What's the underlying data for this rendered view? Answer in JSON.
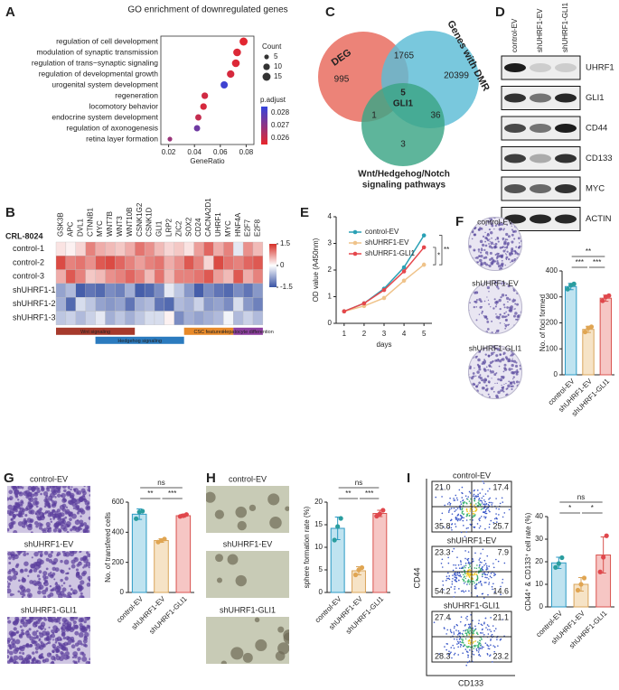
{
  "panel_labels": [
    "A",
    "B",
    "C",
    "D",
    "E",
    "F",
    "G",
    "H",
    "I"
  ],
  "chart_data": [
    {
      "type": "dot",
      "title": "GO enrichment of downregulated genes",
      "categories": [
        "regulation of cell development",
        "modulation of synaptic transmission",
        "regulation of trans−synaptic signaling",
        "regulation of developmental growth",
        "urogenital system development",
        "regeneration",
        "locomotory behavior",
        "endocrine system development",
        "regulation of axonogenesis",
        "retina layer formation"
      ],
      "label_colors": [
        "#d62728",
        "#222222",
        "#222222",
        "#d62728",
        "#222222",
        "#d62728",
        "#222222",
        "#222222",
        "#222222",
        "#222222"
      ],
      "values": [
        0.078,
        0.073,
        0.072,
        0.068,
        0.063,
        0.048,
        0.047,
        0.043,
        0.042,
        0.021
      ],
      "sizes": [
        15,
        14,
        14,
        13,
        12,
        10,
        10,
        9,
        9,
        5
      ],
      "color_values": [
        0.0256,
        0.0257,
        0.0257,
        0.0258,
        0.0283,
        0.0259,
        0.0258,
        0.0261,
        0.0275,
        0.0268
      ],
      "xlim": [
        0.014,
        0.086
      ],
      "xticks": [
        0.02,
        0.04,
        0.06,
        0.08
      ],
      "xlabel": "GeneRatio",
      "size_legend": {
        "title": "Count",
        "values": [
          5,
          10,
          15
        ]
      },
      "color_legend": {
        "title": "p.adjust",
        "ticks": [
          0.028,
          0.027,
          0.026
        ],
        "lim": [
          0.0255,
          0.0285
        ],
        "colors": [
          "#e8262b",
          "#3344dd"
        ]
      }
    },
    {
      "type": "line",
      "x": [
        1,
        2,
        3,
        4,
        5
      ],
      "xlim": [
        0.6,
        5.4
      ],
      "xticks": [
        1,
        2,
        3,
        4,
        5
      ],
      "xlabel": "days",
      "ylabel": "OD value (A450nm)",
      "ylim": [
        0,
        4
      ],
      "yticks": [
        0,
        1,
        2,
        3,
        4
      ],
      "series": [
        {
          "name": "control-EV",
          "color": "#2aa1b5",
          "values": [
            0.45,
            0.75,
            1.3,
            2.1,
            3.3
          ],
          "errors": [
            0.03,
            0.04,
            0.05,
            0.07,
            0.05
          ]
        },
        {
          "name": "shUHRF1-EV",
          "color": "#efc38a",
          "values": [
            0.45,
            0.65,
            0.95,
            1.6,
            2.2
          ],
          "errors": [
            0.03,
            0.04,
            0.05,
            0.07,
            0.08
          ]
        },
        {
          "name": "shUHRF1-GLI1",
          "color": "#e5474c",
          "values": [
            0.45,
            0.75,
            1.25,
            1.95,
            2.85
          ],
          "errors": [
            0.03,
            0.04,
            0.05,
            0.06,
            0.06
          ]
        }
      ],
      "significance": [
        {
          "label": "**",
          "from": 0,
          "to": 1
        },
        {
          "label": "*",
          "from": 2,
          "to": 1
        }
      ]
    },
    {
      "type": "bar",
      "image_labels": [
        "control-EV",
        "shUHRF1-EV",
        "shUHRF1-GLI1"
      ],
      "categories": [
        "control-EV",
        "shUHRF1-EV",
        "shUHRF1-GLI1"
      ],
      "values": [
        340,
        175,
        295
      ],
      "errors": [
        12,
        12,
        12
      ],
      "points": [
        [
          330,
          345,
          350
        ],
        [
          165,
          180,
          185
        ],
        [
          285,
          300,
          305
        ]
      ],
      "ylim": [
        0,
        400
      ],
      "yticks": [
        0,
        100,
        200,
        300,
        400
      ],
      "ylabel": "No. of foci formed",
      "colors": [
        "#bfe3f0",
        "#f6e3c6",
        "#f6c6c4"
      ],
      "edge_colors": [
        "#2b9ac4",
        "#d9a45a",
        "#d9534f"
      ],
      "point_colors": [
        "#2a9d9f",
        "#e0a552",
        "#e0474c"
      ],
      "significance": [
        {
          "label": "**",
          "from": 0,
          "to": 2
        },
        {
          "label": "***",
          "from": 0,
          "to": 1
        },
        {
          "label": "***",
          "from": 1,
          "to": 2
        }
      ]
    },
    {
      "type": "bar",
      "image_labels": [
        "control-EV",
        "shUHRF1-EV",
        "shUHRF1-GLI1"
      ],
      "categories": [
        "control-EV",
        "shUHRF1-EV",
        "shUHRF1-GLI1"
      ],
      "values": [
        520,
        345,
        510
      ],
      "errors": [
        35,
        12,
        10
      ],
      "points": [
        [
          490,
          535,
          540
        ],
        [
          335,
          345,
          355
        ],
        [
          505,
          510,
          518
        ]
      ],
      "ylim": [
        0,
        600
      ],
      "yticks": [
        0,
        200,
        400,
        600
      ],
      "ylabel": "No. of transfered cells",
      "colors": [
        "#bfe3f0",
        "#f6e3c6",
        "#f6c6c4"
      ],
      "edge_colors": [
        "#2b9ac4",
        "#d9a45a",
        "#d9534f"
      ],
      "point_colors": [
        "#2a9d9f",
        "#e0a552",
        "#e0474c"
      ],
      "significance": [
        {
          "label": "ns",
          "from": 0,
          "to": 2
        },
        {
          "label": "**",
          "from": 0,
          "to": 1
        },
        {
          "label": "***",
          "from": 1,
          "to": 2
        }
      ]
    },
    {
      "type": "bar",
      "image_labels": [
        "control-EV",
        "shUHRF1-EV",
        "shUHRF1-GLI1"
      ],
      "categories": [
        "control-EV",
        "shUHRF1-EV",
        "shUHRF1-GLI1"
      ],
      "values": [
        14.2,
        4.8,
        17.5
      ],
      "errors": [
        2.5,
        0.9,
        0.7
      ],
      "points": [
        [
          11.6,
          14.6,
          16.4
        ],
        [
          3.9,
          5.0,
          5.5
        ],
        [
          16.9,
          17.4,
          18.2
        ]
      ],
      "ylim": [
        0,
        20
      ],
      "yticks": [
        0,
        5,
        10,
        15,
        20
      ],
      "ylabel": "sphere formation rate (%)",
      "colors": [
        "#bfe3f0",
        "#f6e3c6",
        "#f6c6c4"
      ],
      "edge_colors": [
        "#2b9ac4",
        "#d9a45a",
        "#d9534f"
      ],
      "point_colors": [
        "#2a9d9f",
        "#e0a552",
        "#e0474c"
      ],
      "significance": [
        {
          "label": "ns",
          "from": 0,
          "to": 2
        },
        {
          "label": "**",
          "from": 0,
          "to": 1
        },
        {
          "label": "***",
          "from": 1,
          "to": 2
        }
      ]
    },
    {
      "type": "bar",
      "categories": [
        "control-EV",
        "shUHRF1-EV",
        "shUHRF1-GLI1"
      ],
      "values": [
        19.5,
        10,
        23
      ],
      "errors": [
        2.5,
        3,
        8
      ],
      "points": [
        [
          17.5,
          19.2,
          21.8
        ],
        [
          7.4,
          10.0,
          12.8
        ],
        [
          15.5,
          22,
          31.5
        ]
      ],
      "ylim": [
        0,
        40
      ],
      "yticks": [
        0,
        10,
        20,
        30,
        40
      ],
      "ylabel": "CD44⁺ & CD133⁺ cell rate (%)",
      "colors": [
        "#bfe3f0",
        "#f6e3c6",
        "#f6c6c4"
      ],
      "edge_colors": [
        "#2b9ac4",
        "#d9a45a",
        "#d9534f"
      ],
      "point_colors": [
        "#2a9d9f",
        "#e0a552",
        "#e0474c"
      ],
      "significance": [
        {
          "label": "ns",
          "from": 0,
          "to": 2
        },
        {
          "label": "*",
          "from": 0,
          "to": 1
        },
        {
          "label": "*",
          "from": 1,
          "to": 2
        }
      ]
    }
  ],
  "heatmap": {
    "row_title": "CRL-8024",
    "columns": [
      "GSK3B",
      "APC",
      "DVL1",
      "CTNNB1",
      "MYC",
      "WNT7B",
      "WNT3",
      "WNT10B",
      "CSNK1G2",
      "CSNK1D",
      "GLI1",
      "LRP2",
      "ZIC2",
      "SOX2",
      "CD24",
      "CACNA2D1",
      "UHRF1",
      "MYC",
      "HNF4A",
      "E2F7",
      "E2F8"
    ],
    "rows": [
      "control-1",
      "control-2",
      "control-3",
      "shUHRF1-1",
      "shUHRF1-2",
      "shUHRF1-3"
    ],
    "values": [
      [
        0.2,
        0.1,
        0.3,
        0.9,
        0.6,
        0.5,
        0.4,
        0.6,
        1.0,
        0.8,
        0.5,
        0.3,
        0.4,
        0.2,
        0.7,
        1.1,
        0.6,
        0.9,
        -0.2,
        0.8,
        0.5
      ],
      [
        1.3,
        0.9,
        1.0,
        0.8,
        1.2,
        1.3,
        1.1,
        0.9,
        0.7,
        0.9,
        1.0,
        0.6,
        0.8,
        1.2,
        0.9,
        0.3,
        1.3,
        1.0,
        0.9,
        1.1,
        1.2
      ],
      [
        0.6,
        1.2,
        0.9,
        0.4,
        0.5,
        0.8,
        0.9,
        1.1,
        0.9,
        0.5,
        1.0,
        0.5,
        0.9,
        0.9,
        1.0,
        1.2,
        0.7,
        0.5,
        1.2,
        0.6,
        0.9
      ],
      [
        -0.8,
        -0.6,
        -1.4,
        -1.2,
        -1.3,
        -1.0,
        -1.1,
        -0.7,
        -1.4,
        -1.3,
        -1.0,
        -0.2,
        -0.5,
        -0.9,
        -1.4,
        -1.0,
        -1.2,
        -1.3,
        -1.0,
        -1.2,
        -0.9
      ],
      [
        -0.7,
        -1.3,
        -0.3,
        -0.5,
        -0.8,
        -0.9,
        -0.8,
        -1.2,
        -0.7,
        -0.6,
        -1.2,
        -1.3,
        -0.6,
        -0.7,
        -0.4,
        -0.9,
        -0.8,
        -1.0,
        -0.3,
        -0.9,
        -1.1
      ],
      [
        -0.5,
        -0.4,
        -0.6,
        -0.4,
        -0.2,
        -0.7,
        -0.5,
        -0.7,
        -0.5,
        -0.3,
        -0.3,
        0.1,
        -1.0,
        -0.7,
        -0.8,
        -0.7,
        -0.6,
        -0.1,
        -0.6,
        -0.4,
        -0.6
      ]
    ],
    "lim": [
      -1.5,
      1.5
    ],
    "ticks": [
      1.5,
      0,
      -1.5
    ],
    "colors": [
      "#3953a4",
      "#ffffff",
      "#d62f27"
    ],
    "groups": [
      {
        "label": "Wnt signaling",
        "start": 0,
        "end": 7,
        "level": 0,
        "color": "#a63a2c"
      },
      {
        "label": "Hedgehog signaling",
        "start": 4,
        "end": 12,
        "level": 1,
        "color": "#2b7bbf"
      },
      {
        "label": "CSC features",
        "start": 13,
        "end": 17,
        "level": 0,
        "color": "#e88a2a"
      },
      {
        "label": "Hepatocyte differention",
        "start": 18,
        "end": 20,
        "level": 0,
        "color": "#8e3fa0"
      }
    ]
  },
  "venn": {
    "sets": [
      {
        "label": "DEG",
        "color": "#e8685a"
      },
      {
        "label": "Genes with DMR",
        "color": "#5bbcd6"
      },
      {
        "label": [
          "Wnt/Hedgehog/Notch",
          "signaling pathways"
        ],
        "color": "#3aa585"
      }
    ],
    "regions": {
      "deg_only": 995,
      "deg_dmr": 1765,
      "dmr_only": 20399,
      "all": 5,
      "all_gene": "GLI1",
      "deg_wnt": 1,
      "dmr_wnt": 36,
      "wnt_only": 3
    }
  },
  "western": {
    "columns": [
      "control-EV",
      "shUHRF1-EV",
      "shUHRF1-GLI1"
    ],
    "rows": [
      "UHRF1",
      "GLI1",
      "CD44",
      "CD133",
      "MYC",
      "ACTIN"
    ],
    "band_intensity": [
      [
        0.95,
        0.15,
        0.15
      ],
      [
        0.85,
        0.55,
        0.9
      ],
      [
        0.75,
        0.55,
        0.95
      ],
      [
        0.8,
        0.3,
        0.85
      ],
      [
        0.7,
        0.6,
        0.85
      ],
      [
        0.9,
        0.9,
        0.9
      ]
    ]
  },
  "flow": {
    "xlabel": "CD133",
    "ylabel": "CD44",
    "plots": [
      {
        "name": "control-EV",
        "quadrants": [
          "21.0",
          "17.4",
          "35.8",
          "25.7"
        ]
      },
      {
        "name": "shUHRF1-EV",
        "quadrants": [
          "23.3",
          "7.9",
          "54.2",
          "14.6"
        ]
      },
      {
        "name": "shUHRF1-GLI1",
        "quadrants": [
          "27.4",
          "21.1",
          "28.3",
          "23.2"
        ]
      }
    ]
  }
}
